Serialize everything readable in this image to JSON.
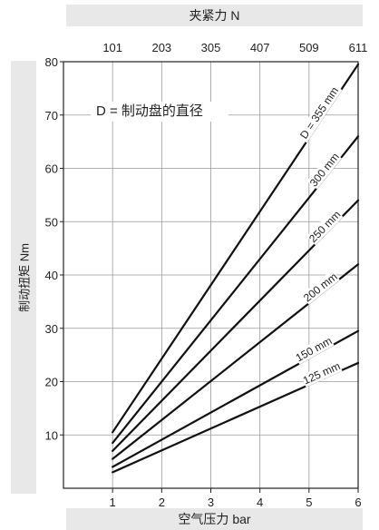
{
  "chart_data": {
    "type": "line",
    "xlabel": "空气压力 bar",
    "ylabel": "制动扭矩 Nm",
    "x2label": "夹紧力 N",
    "xlim": [
      0,
      6
    ],
    "ylim": [
      0,
      80
    ],
    "x_ticks": [
      1,
      2,
      3,
      4,
      5,
      6
    ],
    "x2_ticks": [
      "101",
      "203",
      "305",
      "407",
      "509",
      "611"
    ],
    "y_ticks": [
      10,
      20,
      30,
      40,
      50,
      60,
      70,
      80
    ],
    "annotation": "D = 制动盘的直径",
    "grid": true,
    "series": [
      {
        "name": "D = 355 mm",
        "x": [
          1,
          6
        ],
        "y": [
          10.5,
          79.5
        ]
      },
      {
        "name": "300 mm",
        "x": [
          1,
          6
        ],
        "y": [
          8.5,
          66
        ]
      },
      {
        "name": "250 mm",
        "x": [
          1,
          6
        ],
        "y": [
          7.0,
          54
        ]
      },
      {
        "name": "200 mm",
        "x": [
          1,
          6
        ],
        "y": [
          5.5,
          42
        ]
      },
      {
        "name": "150 mm",
        "x": [
          1,
          6
        ],
        "y": [
          4.0,
          29.5
        ]
      },
      {
        "name": "125 mm",
        "x": [
          1,
          6
        ],
        "y": [
          3.0,
          23.5
        ]
      }
    ]
  }
}
